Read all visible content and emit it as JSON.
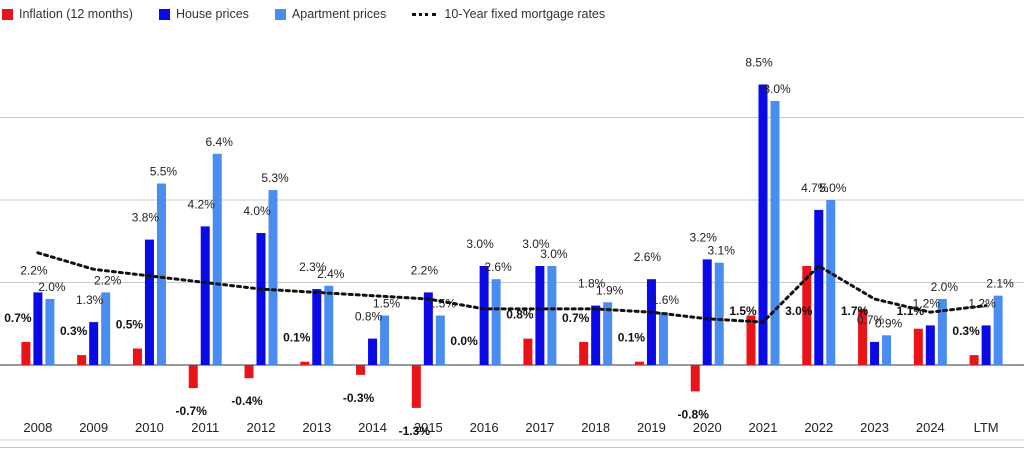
{
  "chart_data": {
    "type": "bar",
    "categories": [
      "2008",
      "2009",
      "2010",
      "2011",
      "2012",
      "2013",
      "2014",
      "2015",
      "2016",
      "2017",
      "2018",
      "2019",
      "2020",
      "2021",
      "2022",
      "2023",
      "2024",
      "LTM"
    ],
    "series": [
      {
        "name": "Inflation (12 months)",
        "type": "bar",
        "color": "#e8141a",
        "values": [
          0.7,
          0.3,
          0.5,
          -0.7,
          -0.4,
          0.1,
          -0.3,
          -1.3,
          0.0,
          0.8,
          0.7,
          0.1,
          -0.8,
          1.5,
          3.0,
          1.7,
          1.1,
          0.3
        ],
        "labels": [
          "0.7%",
          "0.3%",
          "0.5%",
          "-0.7%",
          "-0.4%",
          "0.1%",
          "-0.3%",
          "-1.3%",
          "0.0%",
          "0.8%",
          "0.7%",
          "0.1%",
          "-0.8%",
          "1.5%",
          "3.0%",
          "1.7%",
          "1.1%",
          "0.3%"
        ]
      },
      {
        "name": "House prices",
        "type": "bar",
        "color": "#0a0ae6",
        "values": [
          2.2,
          1.3,
          3.8,
          4.2,
          4.0,
          2.3,
          0.8,
          2.2,
          3.0,
          3.0,
          1.8,
          2.6,
          3.2,
          8.5,
          4.7,
          0.7,
          1.2,
          1.2
        ],
        "labels": [
          "2.2%",
          "1.3%",
          "3.8%",
          "4.2%",
          "4.0%",
          "2.3%",
          "0.8%",
          "2.2%",
          "3.0%",
          "3.0%",
          "1.8%",
          "2.6%",
          "3.2%",
          "8.5%",
          "4.7%",
          "0.7%",
          "1.2%",
          "1.2%"
        ]
      },
      {
        "name": "Apartment prices",
        "type": "bar",
        "color": "#4a8df0",
        "values": [
          2.0,
          2.2,
          5.5,
          6.4,
          5.3,
          2.4,
          1.5,
          1.5,
          2.6,
          3.0,
          1.9,
          1.6,
          3.1,
          8.0,
          5.0,
          0.9,
          2.0,
          2.1
        ],
        "labels": [
          "2.0%",
          "2.2%",
          "5.5%",
          "6.4%",
          "5.3%",
          "2.4%",
          "1.5%",
          "1.5%",
          "2.6%",
          "3.0%",
          "1.9%",
          "1.6%",
          "3.1%",
          "8.0%",
          "5.0%",
          "0.9%",
          "2.0%",
          "2.1%"
        ]
      },
      {
        "name": "10-Year fixed mortgage rates",
        "type": "line",
        "style": "dotted",
        "color": "#111111",
        "values": [
          3.4,
          2.9,
          2.7,
          2.5,
          2.3,
          2.2,
          2.1,
          2.0,
          1.7,
          1.7,
          1.7,
          1.6,
          1.4,
          1.3,
          3.0,
          2.0,
          1.6,
          1.8
        ]
      }
    ],
    "ylim": [
      -1.5,
      9.5
    ],
    "grid": true,
    "legend": "top-left",
    "xlabel": "",
    "ylabel": ""
  }
}
